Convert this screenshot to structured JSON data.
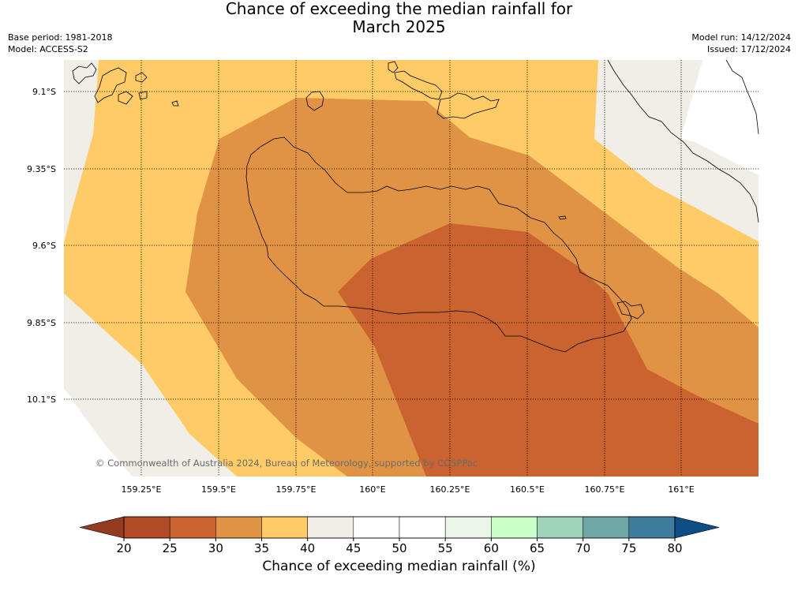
{
  "title_line1": "Chance of exceeding the median rainfall for",
  "title_line2": "March 2025",
  "meta_left": {
    "base_period": "Base period: 1981-2018",
    "model": "Model: ACCESS-S2"
  },
  "meta_right": {
    "model_run": "Model run: 14/12/2024",
    "issued": "Issued: 17/12/2024"
  },
  "map": {
    "lat_labels": [
      "9.1°S",
      "9.35°S",
      "9.6°S",
      "9.85°S",
      "10.1°S"
    ],
    "lon_labels": [
      "159.25°E",
      "159.5°E",
      "159.75°E",
      "160°E",
      "160.25°E",
      "160.5°E",
      "160.75°E",
      "161°E"
    ],
    "copyright": "© Commonwealth of Australia 2024, Bureau of Meteorology, supported by COSPPac"
  },
  "colorbar": {
    "title": "Chance of exceeding median rainfall (%)",
    "tick_labels": [
      "20",
      "25",
      "30",
      "35",
      "40",
      "45",
      "50",
      "55",
      "60",
      "65",
      "70",
      "75",
      "80"
    ],
    "colors": [
      "#b34a27",
      "#cb6330",
      "#e09345",
      "#fecb67",
      "#f1ede7",
      "#ffffff",
      "#ffffff",
      "#eaf6e9",
      "#cafec9",
      "#9ed2bb",
      "#6fa6a6",
      "#3f7b9d"
    ],
    "under_color": "#943b20",
    "over_color": "#0f4d87"
  },
  "colors": {
    "band_30_35": "#e09345",
    "band_25_30": "#cb6330",
    "band_35_40": "#fecb67",
    "band_40_45": "#f1ede7"
  }
}
